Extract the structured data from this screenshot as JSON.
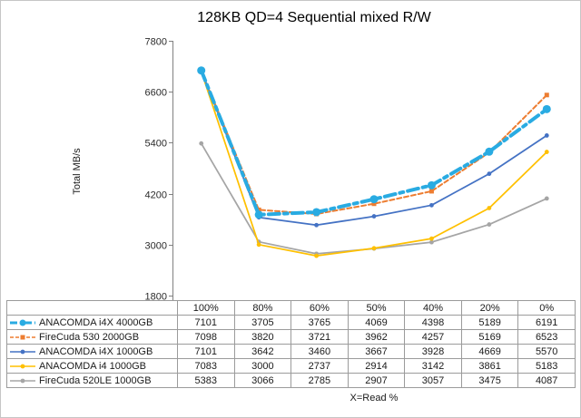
{
  "chart_data": {
    "type": "line",
    "title": "128KB QD=4 Sequential mixed R/W",
    "xlabel": "X=Read %",
    "ylabel": "Total MB/s",
    "categories": [
      "100%",
      "80%",
      "60%",
      "50%",
      "40%",
      "20%",
      "0%"
    ],
    "ylim": [
      1800,
      7800
    ],
    "y_ticks": [
      7800,
      6600,
      5400,
      4200,
      3000,
      1800
    ],
    "grid": false,
    "legend_position": "table-left",
    "axis_color": "#808080",
    "table_border_color": "#9b9b9b",
    "series": [
      {
        "name": "ANACOMDA i4X 4000GB",
        "color": "#29abe2",
        "style": "dashdot-thick",
        "marker": "circle-large",
        "values": [
          7101,
          3705,
          3765,
          4069,
          4398,
          5189,
          6191
        ]
      },
      {
        "name": "FireCuda 530 2000GB",
        "color": "#ED7D31",
        "style": "dashed",
        "marker": "square-small",
        "values": [
          7098,
          3820,
          3721,
          3962,
          4257,
          5169,
          6523
        ]
      },
      {
        "name": "ANACOMDA i4X 1000GB",
        "color": "#4472C4",
        "style": "solid",
        "marker": "circle-small",
        "values": [
          7101,
          3642,
          3460,
          3667,
          3928,
          4669,
          5570
        ]
      },
      {
        "name": "ANACOMDA i4 1000GB",
        "color": "#FFC000",
        "style": "solid",
        "marker": "circle-small",
        "values": [
          7083,
          3000,
          2737,
          2914,
          3142,
          3861,
          5183
        ]
      },
      {
        "name": "FireCuda 520LE 1000GB",
        "color": "#A5A5A5",
        "style": "solid",
        "marker": "circle-small",
        "values": [
          5383,
          3066,
          2785,
          2907,
          3057,
          3475,
          4087
        ]
      }
    ]
  }
}
